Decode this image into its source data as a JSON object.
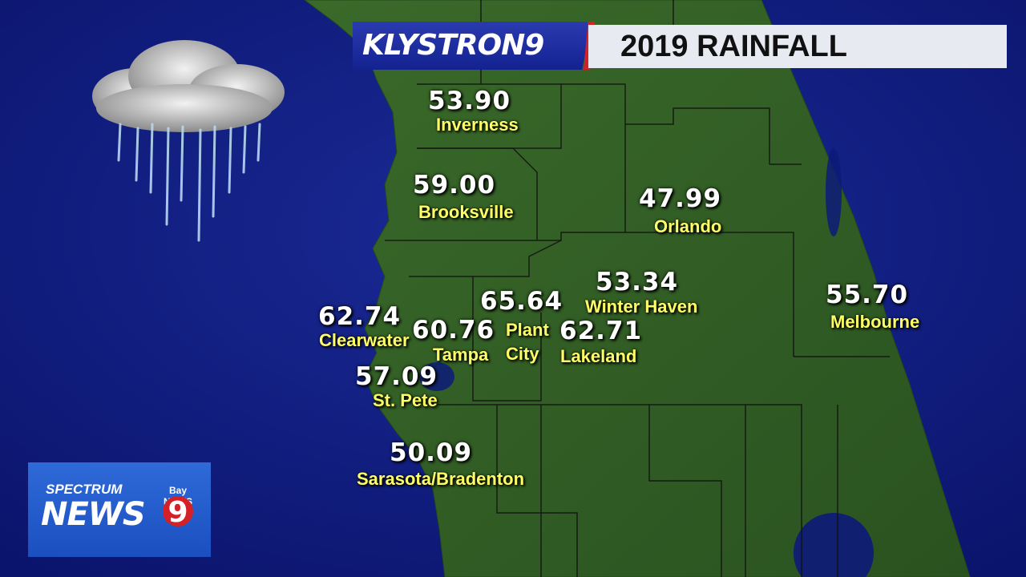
{
  "colors": {
    "ocean": "#0d1a78",
    "land": "#2f5a22",
    "value_text": "#ffffff",
    "city_text": "#ffff66",
    "accent_red": "#d42027"
  },
  "brand": {
    "name": "KLYSTRON9"
  },
  "title": "2019 RAINFALL",
  "logo": {
    "line1": "SPECTRUM",
    "line2": "NEWS",
    "badge_top": "Bay NEWS",
    "badge_num": "9"
  },
  "icons": {
    "weather": "rain-cloud-icon"
  },
  "stations": [
    {
      "city": "Inverness",
      "value": "53.90"
    },
    {
      "city": "Brooksville",
      "value": "59.00"
    },
    {
      "city": "Orlando",
      "value": "47.99"
    },
    {
      "city": "Winter Haven",
      "value": "53.34"
    },
    {
      "city": "Melbourne",
      "value": "55.70"
    },
    {
      "city": "Clearwater",
      "value": "62.74"
    },
    {
      "city": "Plant City",
      "value": "65.64"
    },
    {
      "city": "Tampa",
      "value": "60.76"
    },
    {
      "city": "Lakeland",
      "value": "62.71"
    },
    {
      "city": "St. Pete",
      "value": "57.09"
    },
    {
      "city": "Sarasota/Bradenton",
      "value": "50.09"
    }
  ]
}
